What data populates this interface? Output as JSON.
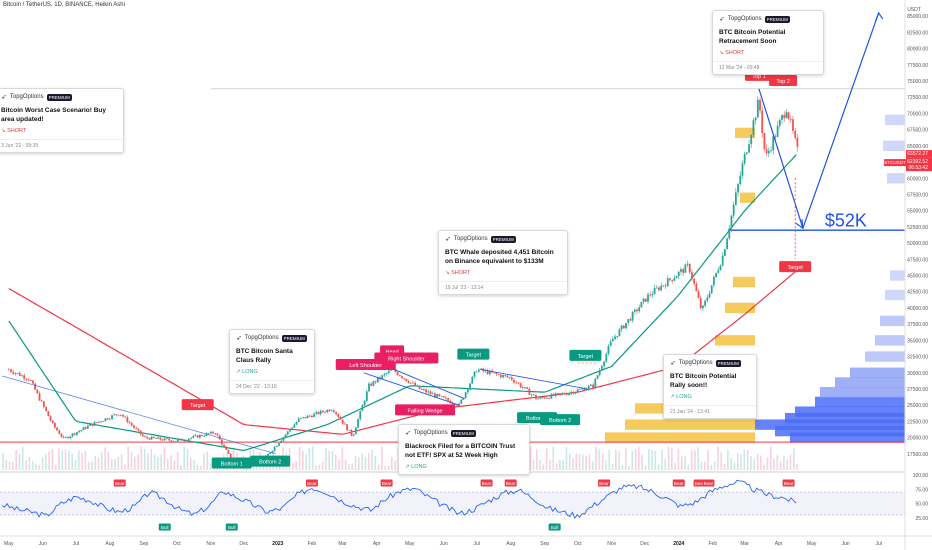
{
  "header": {
    "symbol_line": "Bitcoin / TetherUS, 1D, BINANCE, Heikin Ashi"
  },
  "price_scale": {
    "currency": "USDT",
    "labels": [
      "85000.00",
      "82500.00",
      "80000.00",
      "77500.00",
      "75000.00",
      "72500.00",
      "70000.00",
      "67500.00",
      "65000.00",
      "62500.00",
      "60000.00",
      "57500.00",
      "55000.00",
      "52500.00",
      "50000.00",
      "47500.00",
      "45000.00",
      "42500.00",
      "40000.00",
      "37500.00",
      "35000.00",
      "32500.00",
      "30000.00",
      "27500.00",
      "25000.00",
      "22500.00",
      "20000.00",
      "17500.00"
    ],
    "current_price_tags": [
      "63572.27",
      "62392.52",
      "06:53:42"
    ],
    "ticker_tag": "BTCUSDT"
  },
  "rsi_scale": {
    "labels": [
      "100.00",
      "75.00",
      "50.00",
      "25.00"
    ]
  },
  "time_axis": {
    "labels": [
      "May",
      "Jun",
      "Jul",
      "Aug",
      "Sep",
      "Oct",
      "Nov",
      "Dec",
      "2023",
      "Feb",
      "Mar",
      "Apr",
      "May",
      "Jun",
      "Jul",
      "Aug",
      "Sep",
      "Oct",
      "Nov",
      "Dec",
      "2024",
      "Feb",
      "Mar",
      "Apr",
      "May",
      "Jun",
      "Jul"
    ]
  },
  "chart_data": {
    "type": "candlestick",
    "title": "Bitcoin / TetherUS, 1D, BINANCE, Heikin Ashi",
    "ylabel": "USDT",
    "ylim": [
      15000,
      87500
    ],
    "x_range": [
      "2022-05",
      "2024-07"
    ],
    "price_path": [
      {
        "date": "2022-05",
        "price": 30500
      },
      {
        "date": "2022-05-20",
        "price": 29000
      },
      {
        "date": "2022-06-10",
        "price": 22000
      },
      {
        "date": "2022-06-20",
        "price": 19800
      },
      {
        "date": "2022-07-15",
        "price": 22000
      },
      {
        "date": "2022-08-10",
        "price": 23800
      },
      {
        "date": "2022-09-01",
        "price": 20000
      },
      {
        "date": "2022-10-01",
        "price": 19500
      },
      {
        "date": "2022-11-05",
        "price": 20800
      },
      {
        "date": "2022-11-20",
        "price": 16500
      },
      {
        "date": "2022-12-20",
        "price": 16800
      },
      {
        "date": "2023-01-20",
        "price": 22800
      },
      {
        "date": "2023-02-20",
        "price": 24500
      },
      {
        "date": "2023-03-10",
        "price": 20200
      },
      {
        "date": "2023-03-25",
        "price": 28000
      },
      {
        "date": "2023-04-15",
        "price": 30500
      },
      {
        "date": "2023-05-10",
        "price": 27500
      },
      {
        "date": "2023-06-15",
        "price": 25000
      },
      {
        "date": "2023-07-01",
        "price": 30500
      },
      {
        "date": "2023-08-01",
        "price": 29200
      },
      {
        "date": "2023-08-25",
        "price": 26000
      },
      {
        "date": "2023-09-20",
        "price": 26800
      },
      {
        "date": "2023-10-15",
        "price": 28000
      },
      {
        "date": "2023-11-01",
        "price": 35000
      },
      {
        "date": "2023-12-05",
        "price": 42000
      },
      {
        "date": "2024-01-10",
        "price": 46500
      },
      {
        "date": "2024-01-22",
        "price": 39500
      },
      {
        "date": "2024-02-10",
        "price": 48000
      },
      {
        "date": "2024-02-28",
        "price": 62000
      },
      {
        "date": "2024-03-14",
        "price": 72000
      },
      {
        "date": "2024-03-20",
        "price": 63000
      },
      {
        "date": "2024-04-08",
        "price": 71000
      },
      {
        "date": "2024-04-19",
        "price": 63500
      }
    ],
    "current_price": 63572.27,
    "ema_fast_path": [
      {
        "date": "2022-05",
        "price": 38000
      },
      {
        "date": "2022-07-01",
        "price": 22500
      },
      {
        "date": "2022-12-01",
        "price": 18000
      },
      {
        "date": "2023-02-15",
        "price": 22000
      },
      {
        "date": "2023-05-01",
        "price": 28000
      },
      {
        "date": "2023-09-01",
        "price": 27000
      },
      {
        "date": "2023-11-01",
        "price": 31000
      },
      {
        "date": "2024-01-01",
        "price": 42000
      },
      {
        "date": "2024-03-01",
        "price": 55000
      },
      {
        "date": "2024-04-19",
        "price": 64000
      }
    ],
    "ema_slow_path": [
      {
        "date": "2022-05",
        "price": 43000
      },
      {
        "date": "2022-08-01",
        "price": 34000
      },
      {
        "date": "2022-12-01",
        "price": 22000
      },
      {
        "date": "2023-03-01",
        "price": 20500
      },
      {
        "date": "2023-06-01",
        "price": 24500
      },
      {
        "date": "2023-10-01",
        "price": 27000
      },
      {
        "date": "2024-01-01",
        "price": 31000
      },
      {
        "date": "2024-03-01",
        "price": 39000
      },
      {
        "date": "2024-04-19",
        "price": 46000
      }
    ],
    "horizontal_levels": [
      {
        "price": 19300
      },
      {
        "price": 52000
      },
      {
        "price": 73800
      }
    ],
    "projection_path": [
      {
        "date": "2024-03-14",
        "price": 73800
      },
      {
        "date": "2024-04-23",
        "price": 52300
      },
      {
        "date": "2024-07-01",
        "price": 85500
      }
    ],
    "rsi": {
      "ylim": [
        0,
        100
      ],
      "levels": [
        70,
        30
      ],
      "values": [
        48,
        40,
        35,
        28,
        50,
        62,
        55,
        42,
        35,
        45,
        70,
        58,
        40,
        30,
        45,
        72,
        60,
        48,
        35,
        42,
        65,
        78,
        70,
        55,
        45,
        38,
        58,
        72,
        76,
        60,
        45,
        32,
        40,
        55,
        68,
        74,
        60,
        42,
        35,
        28,
        45,
        62,
        78,
        80,
        72,
        60,
        45,
        52,
        70,
        82,
        88,
        74,
        65,
        60,
        50
      ]
    },
    "annotations": [
      {
        "text": "Target",
        "date": "2022-10-20",
        "price": 25000,
        "color": "#f23645"
      },
      {
        "text": "Bottom 1",
        "date": "2022-11-20",
        "price": 16000,
        "color": "#089981"
      },
      {
        "text": "Bottom 2",
        "date": "2022-12-25",
        "price": 16300,
        "color": "#089981"
      },
      {
        "text": "Left Shoulder",
        "date": "2023-03-22",
        "price": 31200,
        "color": "#e91e63"
      },
      {
        "text": "Head",
        "date": "2023-04-15",
        "price": 33300,
        "color": "#e91e63"
      },
      {
        "text": "Right Shoulder",
        "date": "2023-04-28",
        "price": 32200,
        "color": "#e91e63"
      },
      {
        "text": "Falling Wedge",
        "date": "2023-05-15",
        "price": 24200,
        "color": "#e91e63"
      },
      {
        "text": "Target",
        "date": "2023-06-28",
        "price": 32800,
        "color": "#089981"
      },
      {
        "text": "Bottom 1",
        "date": "2023-08-25",
        "price": 23000,
        "color": "#089981"
      },
      {
        "text": "Bottom 2",
        "date": "2023-09-15",
        "price": 22700,
        "color": "#089981"
      },
      {
        "text": "Target",
        "date": "2023-10-08",
        "price": 32600,
        "color": "#089981"
      },
      {
        "text": "Top 1",
        "date": "2024-03-14",
        "price": 75800,
        "color": "#f23645"
      },
      {
        "text": "Top 2",
        "date": "2024-04-05",
        "price": 75000,
        "color": "#f23645"
      },
      {
        "text": "Target",
        "date": "2024-04-16",
        "price": 46300,
        "color": "#f23645"
      },
      {
        "text": "$52K",
        "date": "2024-05-13",
        "price": 53300,
        "color": "#1e53e5"
      }
    ],
    "rsi_markers": [
      {
        "text": "Bear",
        "date": "2022-08-10"
      },
      {
        "text": "Bull",
        "date": "2022-09-20"
      },
      {
        "text": "Bull",
        "date": "2022-11-20"
      },
      {
        "text": "Bear",
        "date": "2023-02-01"
      },
      {
        "text": "Bear",
        "date": "2023-04-10"
      },
      {
        "text": "Bear",
        "date": "2023-07-10"
      },
      {
        "text": "Bear",
        "date": "2023-08-01"
      },
      {
        "text": "Bull",
        "date": "2023-09-10"
      },
      {
        "text": "Bear",
        "date": "2023-10-25"
      },
      {
        "text": "Bear",
        "date": "2024-01-01"
      },
      {
        "text": "Bear",
        "date": "2024-01-20"
      },
      {
        "text": "Bear",
        "date": "2024-01-28"
      },
      {
        "text": "Bear",
        "date": "2024-04-10"
      }
    ]
  },
  "ideas": [
    {
      "id": "c1",
      "author": "TopgOptions",
      "badge": "PREMIUM",
      "title": "Bitcoin Worst Case Scenario! Buy area updated!",
      "direction": "SHORT",
      "direction_icon": "↘",
      "date": "3 Jun '22 - 09:39"
    },
    {
      "id": "c2",
      "author": "TopgOptions",
      "badge": "PREMIUM",
      "title": "BTC Bitcoin Santa Claus Rally",
      "direction": "LONG",
      "direction_icon": "↗",
      "date": "24 Dec '22 - 13:19"
    },
    {
      "id": "c3",
      "author": "TopgOptions",
      "badge": "PREMIUM",
      "title": "BTC Whale deposited 4,451 Bitcoin on Binance equivalent to $133M",
      "direction": "SHORT",
      "direction_icon": "↘",
      "date": "19 Jul '23 - 13:14"
    },
    {
      "id": "c4",
      "author": "TopgOptions",
      "badge": "PREMIUM",
      "title": "Blackrock Filed for a BITCOIN Trust not ETF! SPX at 52 Week High",
      "direction": "LONG",
      "direction_icon": "↗",
      "date": ""
    },
    {
      "id": "c5",
      "author": "TopgOptions",
      "badge": "PREMIUM",
      "title": "BTC Bitcoin Potential Rally soon!!",
      "direction": "LONG",
      "direction_icon": "↗",
      "date": "21 Jan '24 - 13:41"
    },
    {
      "id": "c6",
      "author": "TopgOptions",
      "badge": "PREMIUM",
      "title": "BTC Bitcoin Potential Retracement Soon",
      "direction": "SHORT",
      "direction_icon": "↘",
      "date": "12 Mar '24 - 09:48"
    }
  ]
}
